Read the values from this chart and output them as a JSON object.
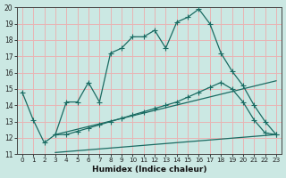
{
  "xlabel": "Humidex (Indice chaleur)",
  "bg_color": "#cbe8e3",
  "grid_color": "#e8b4b4",
  "line_color": "#1a6b62",
  "xlim": [
    -0.5,
    23.5
  ],
  "ylim": [
    11,
    20
  ],
  "xticks": [
    0,
    1,
    2,
    3,
    4,
    5,
    6,
    7,
    8,
    9,
    10,
    11,
    12,
    13,
    14,
    15,
    16,
    17,
    18,
    19,
    20,
    21,
    22,
    23
  ],
  "yticks": [
    11,
    12,
    13,
    14,
    15,
    16,
    17,
    18,
    19,
    20
  ],
  "line1_x": [
    0,
    1,
    2,
    3,
    4,
    5,
    6,
    7,
    8,
    9,
    10,
    11,
    12,
    13,
    14,
    15,
    16,
    17,
    18,
    19,
    20,
    21,
    22,
    23
  ],
  "line1_y": [
    14.8,
    13.1,
    11.7,
    12.2,
    14.2,
    14.2,
    15.4,
    14.2,
    17.2,
    17.5,
    18.2,
    18.2,
    18.6,
    17.5,
    19.1,
    19.4,
    19.9,
    19.0,
    17.2,
    16.1,
    15.2,
    14.0,
    13.0,
    12.2
  ],
  "line2_x": [
    3,
    4,
    5,
    6,
    7,
    8,
    9,
    10,
    11,
    12,
    13,
    14,
    15,
    16,
    17,
    18,
    19,
    20,
    21,
    22,
    23
  ],
  "line2_y": [
    12.2,
    12.2,
    12.4,
    12.6,
    12.8,
    13.0,
    13.2,
    13.4,
    13.6,
    13.8,
    14.0,
    14.2,
    14.5,
    14.8,
    15.1,
    15.4,
    15.0,
    14.2,
    13.1,
    12.3,
    12.2
  ],
  "line3_x": [
    3,
    23
  ],
  "line3_y": [
    12.2,
    15.5
  ],
  "line4_x": [
    3,
    23
  ],
  "line4_y": [
    11.1,
    12.2
  ]
}
